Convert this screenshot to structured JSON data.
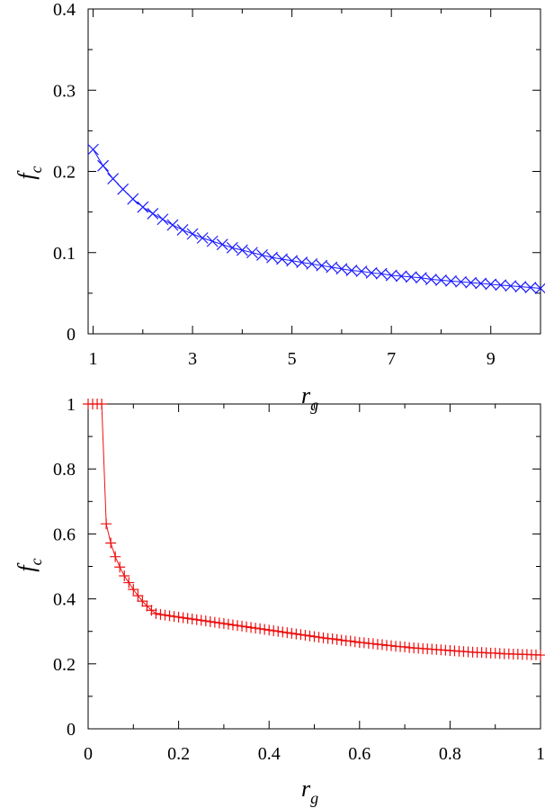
{
  "chart_data": [
    {
      "type": "scatter",
      "marker": "x",
      "color": "#1a1aff",
      "xlabel": "r",
      "xlabel_sub": "g",
      "ylabel": "f",
      "ylabel_sub": "c",
      "xlim": [
        0.9,
        10
      ],
      "ylim": [
        0,
        0.4
      ],
      "xticks": [
        1,
        3,
        5,
        7,
        9
      ],
      "xtick_labels": [
        "1",
        "3",
        "5",
        "7",
        "9"
      ],
      "yticks": [
        0,
        0.1,
        0.2,
        0.3,
        0.4
      ],
      "ytick_labels": [
        "0",
        "0.1",
        "0.2",
        "0.3",
        "0.4"
      ],
      "grid": false,
      "series": [
        {
          "x": [
            1.0,
            1.2,
            1.4,
            1.6,
            1.8,
            2.0,
            2.2,
            2.4,
            2.6,
            2.8,
            3.0,
            3.2,
            3.4,
            3.6,
            3.8,
            4.0,
            4.2,
            4.4,
            4.6,
            4.8,
            5.0,
            5.2,
            5.4,
            5.6,
            5.8,
            6.0,
            6.2,
            6.4,
            6.6,
            6.8,
            7.0,
            7.2,
            7.4,
            7.6,
            7.8,
            8.0,
            8.2,
            8.4,
            8.6,
            8.8,
            9.0,
            9.2,
            9.4,
            9.6,
            9.8,
            10.0
          ],
          "y": [
            0.227,
            0.207,
            0.191,
            0.178,
            0.166,
            0.156,
            0.148,
            0.141,
            0.134,
            0.128,
            0.123,
            0.118,
            0.114,
            0.11,
            0.106,
            0.103,
            0.1,
            0.097,
            0.094,
            0.092,
            0.09,
            0.088,
            0.086,
            0.084,
            0.082,
            0.08,
            0.078,
            0.077,
            0.075,
            0.074,
            0.072,
            0.071,
            0.07,
            0.069,
            0.067,
            0.066,
            0.065,
            0.064,
            0.063,
            0.062,
            0.061,
            0.06,
            0.059,
            0.058,
            0.057,
            0.056
          ]
        }
      ]
    },
    {
      "type": "scatter",
      "marker": "+",
      "color": "#ee1111",
      "xlabel": "r",
      "xlabel_sub": "g",
      "ylabel": "f",
      "ylabel_sub": "c",
      "xlim": [
        0,
        1
      ],
      "ylim": [
        0,
        1
      ],
      "xticks": [
        0,
        0.2,
        0.4,
        0.6,
        0.8,
        1
      ],
      "xtick_labels": [
        "0",
        "0.2",
        "0.4",
        "0.6",
        "0.8",
        "1"
      ],
      "yticks": [
        0,
        0.2,
        0.4,
        0.6,
        0.8,
        1
      ],
      "ytick_labels": [
        "0",
        "0.2",
        "0.4",
        "0.6",
        "0.8",
        "1"
      ],
      "grid": false,
      "series": [
        {
          "x": [
            0.0,
            0.01,
            0.02,
            0.03,
            0.04,
            0.05,
            0.06,
            0.07,
            0.08,
            0.09,
            0.1,
            0.11,
            0.12,
            0.13,
            0.14,
            0.15,
            0.16,
            0.17,
            0.18,
            0.19,
            0.2,
            0.21,
            0.22,
            0.23,
            0.24,
            0.25,
            0.26,
            0.27,
            0.28,
            0.29,
            0.3,
            0.31,
            0.32,
            0.33,
            0.34,
            0.35,
            0.36,
            0.37,
            0.38,
            0.39,
            0.4,
            0.41,
            0.42,
            0.43,
            0.44,
            0.45,
            0.46,
            0.47,
            0.48,
            0.49,
            0.5,
            0.51,
            0.52,
            0.53,
            0.54,
            0.55,
            0.56,
            0.57,
            0.58,
            0.59,
            0.6,
            0.61,
            0.62,
            0.63,
            0.64,
            0.65,
            0.66,
            0.67,
            0.68,
            0.69,
            0.7,
            0.71,
            0.72,
            0.73,
            0.74,
            0.75,
            0.76,
            0.77,
            0.78,
            0.79,
            0.8,
            0.81,
            0.82,
            0.83,
            0.84,
            0.85,
            0.86,
            0.87,
            0.88,
            0.89,
            0.9,
            0.91,
            0.92,
            0.93,
            0.94,
            0.95,
            0.96,
            0.97,
            0.98,
            0.99,
            1.0
          ],
          "y": [
            1.0,
            1.0,
            1.0,
            1.0,
            0.631,
            0.572,
            0.53,
            0.498,
            0.471,
            0.45,
            0.429,
            0.41,
            0.393,
            0.378,
            0.365,
            0.355,
            0.352,
            0.35,
            0.348,
            0.346,
            0.344,
            0.342,
            0.34,
            0.338,
            0.336,
            0.334,
            0.332,
            0.33,
            0.328,
            0.326,
            0.324,
            0.322,
            0.32,
            0.318,
            0.316,
            0.314,
            0.312,
            0.31,
            0.308,
            0.306,
            0.304,
            0.302,
            0.3,
            0.298,
            0.296,
            0.294,
            0.292,
            0.29,
            0.288,
            0.286,
            0.284,
            0.282,
            0.28,
            0.278,
            0.277,
            0.275,
            0.273,
            0.271,
            0.27,
            0.268,
            0.266,
            0.265,
            0.263,
            0.262,
            0.26,
            0.259,
            0.257,
            0.256,
            0.254,
            0.253,
            0.252,
            0.25,
            0.249,
            0.248,
            0.247,
            0.246,
            0.245,
            0.244,
            0.243,
            0.242,
            0.241,
            0.24,
            0.239,
            0.238,
            0.237,
            0.236,
            0.235,
            0.235,
            0.234,
            0.233,
            0.233,
            0.232,
            0.231,
            0.231,
            0.23,
            0.23,
            0.229,
            0.229,
            0.228,
            0.228,
            0.227
          ]
        }
      ]
    }
  ]
}
